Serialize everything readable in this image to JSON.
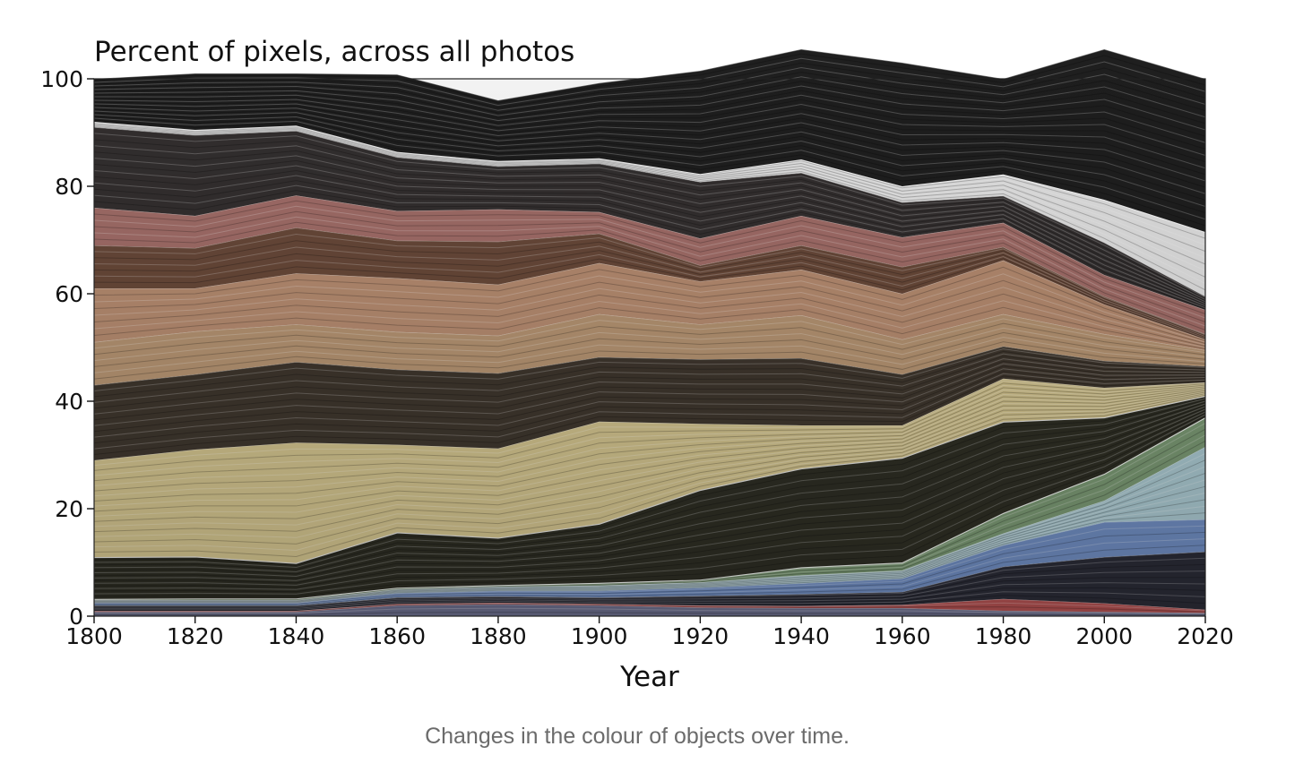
{
  "chart_data": {
    "type": "area",
    "stacked": true,
    "title": "Percent of pixels, across all photos",
    "xlabel": "Year",
    "ylabel": "",
    "x": [
      1800,
      1820,
      1840,
      1860,
      1880,
      1900,
      1920,
      1940,
      1960,
      1980,
      2000,
      2020
    ],
    "xticks": [
      "1800",
      "1820",
      "1840",
      "1860",
      "1880",
      "1900",
      "1920",
      "1940",
      "1960",
      "1980",
      "2000",
      "2020"
    ],
    "yticks": [
      "0",
      "20",
      "40",
      "60",
      "80",
      "100"
    ],
    "xlim": [
      1800,
      2020
    ],
    "ylim": [
      0,
      100
    ],
    "grid": false,
    "series": [
      {
        "name": "purple-blue",
        "color": "#6a6c8a",
        "values": [
          0.8,
          0.8,
          0.8,
          2.0,
          2.2,
          2.0,
          1.6,
          1.5,
          1.5,
          1.0,
          0.8,
          0.6
        ]
      },
      {
        "name": "red",
        "color": "#b05050",
        "values": [
          0.2,
          0.2,
          0.2,
          0.3,
          0.3,
          0.3,
          0.4,
          0.4,
          0.6,
          2.2,
          1.6,
          0.6
        ]
      },
      {
        "name": "dark-navy",
        "color": "#2a2b36",
        "values": [
          1.0,
          1.0,
          1.0,
          1.2,
          1.2,
          1.2,
          1.8,
          2.2,
          2.4,
          6.0,
          8.6,
          10.8
        ]
      },
      {
        "name": "blue",
        "color": "#6f8cc0",
        "values": [
          0.5,
          0.5,
          0.5,
          0.8,
          1.0,
          1.2,
          1.5,
          2.0,
          2.5,
          4.0,
          6.5,
          6.0
        ]
      },
      {
        "name": "pale-cyan",
        "color": "#a9c7cf",
        "values": [
          0.5,
          0.5,
          0.5,
          0.7,
          0.8,
          1.0,
          1.0,
          1.5,
          1.5,
          2.2,
          4.0,
          13.5
        ]
      },
      {
        "name": "green",
        "color": "#7a9873",
        "values": [
          0.2,
          0.3,
          0.3,
          0.3,
          0.3,
          0.5,
          0.5,
          1.5,
          1.5,
          3.8,
          5.0,
          5.5
        ]
      },
      {
        "name": "dark-olive",
        "color": "#2e2e24",
        "values": [
          7.8,
          7.8,
          6.6,
          10.3,
          8.8,
          11.0,
          16.7,
          18.4,
          19.5,
          17.0,
          10.5,
          4.0
        ]
      },
      {
        "name": "light-yellow",
        "color": "#d2c38e",
        "values": [
          18.0,
          19.9,
          22.4,
          16.3,
          16.6,
          19.0,
          12.3,
          8.0,
          6.0,
          8.0,
          5.5,
          2.5
        ]
      },
      {
        "name": "dark-brown",
        "color": "#3f372e",
        "values": [
          14.0,
          14.0,
          15.0,
          14.0,
          14.0,
          12.0,
          12.0,
          12.5,
          9.5,
          6.0,
          5.0,
          3.0
        ]
      },
      {
        "name": "tan",
        "color": "#b89674",
        "values": [
          8.0,
          8.0,
          7.0,
          7.0,
          7.0,
          8.0,
          6.5,
          8.0,
          6.5,
          6.0,
          5.0,
          3.0
        ]
      },
      {
        "name": "peach",
        "color": "#b98e72",
        "values": [
          10.0,
          8.0,
          9.5,
          10.0,
          9.5,
          9.5,
          8.0,
          8.5,
          8.5,
          10.0,
          5.5,
          2.0
        ]
      },
      {
        "name": "brown-orange",
        "color": "#6a4a3a",
        "values": [
          8.0,
          7.5,
          8.5,
          7.0,
          8.0,
          5.5,
          3.0,
          4.5,
          5.0,
          2.5,
          1.5,
          1.0
        ]
      },
      {
        "name": "pink-red",
        "color": "#a46f6a",
        "values": [
          7.0,
          6.0,
          6.0,
          5.5,
          6.0,
          4.0,
          5.0,
          5.5,
          5.5,
          4.5,
          4.0,
          4.5
        ]
      },
      {
        "name": "dark-charcoal",
        "color": "#343030",
        "values": [
          15.0,
          15.0,
          12.0,
          10.0,
          8.0,
          9.0,
          10.5,
          8.0,
          6.5,
          5.0,
          6.0,
          2.5
        ]
      },
      {
        "name": "white-gray",
        "color": "#e6e6e6",
        "values": [
          1.0,
          1.0,
          1.0,
          1.0,
          1.0,
          1.0,
          1.5,
          2.5,
          3.0,
          4.0,
          8.0,
          12.0
        ]
      },
      {
        "name": "gray-black",
        "color": "#1f1f1f",
        "values": [
          8.0,
          10.5,
          9.7,
          14.4,
          11.3,
          14.0,
          19.2,
          20.5,
          23.0,
          17.8,
          28.0,
          28.5
        ]
      }
    ]
  },
  "caption": "Changes in the colour of objects over time."
}
